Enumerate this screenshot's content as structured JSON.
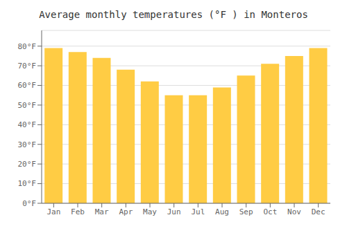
{
  "chart_data": {
    "type": "bar",
    "title": "Average monthly temperatures (°F ) in Monteros",
    "categories": [
      "Jan",
      "Feb",
      "Mar",
      "Apr",
      "May",
      "Jun",
      "Jul",
      "Aug",
      "Sep",
      "Oct",
      "Nov",
      "Dec"
    ],
    "values": [
      79,
      77,
      74,
      68,
      62,
      55,
      55,
      59,
      65,
      71,
      75,
      79
    ],
    "color": "#FFCC44",
    "ylim": [
      0,
      88
    ],
    "yticks": [
      {
        "value": 0,
        "label": "0°F"
      },
      {
        "value": 10,
        "label": "10°F"
      },
      {
        "value": 20,
        "label": "20°F"
      },
      {
        "value": 30,
        "label": "30°F"
      },
      {
        "value": 40,
        "label": "40°F"
      },
      {
        "value": 50,
        "label": "50°F"
      },
      {
        "value": 60,
        "label": "60°F"
      },
      {
        "value": 70,
        "label": "70°F"
      },
      {
        "value": 80,
        "label": "80°F"
      }
    ],
    "grid": true
  }
}
